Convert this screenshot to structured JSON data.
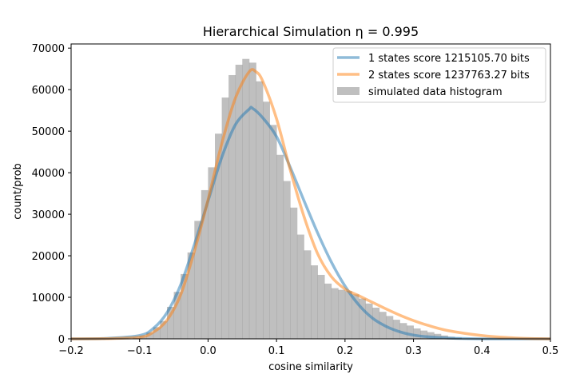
{
  "chart_data": {
    "type": "histogram",
    "title": "Hierarchical Simulation  η = 0.995",
    "xlabel": "cosine similarity",
    "ylabel": "count/prob",
    "xlim": [
      -0.2,
      0.5
    ],
    "ylim": [
      0,
      71000
    ],
    "xticks": [
      "−0.2",
      "−0.1",
      "0.0",
      "0.1",
      "0.2",
      "0.3",
      "0.4",
      "0.5"
    ],
    "yticks": [
      "0",
      "10000",
      "20000",
      "30000",
      "40000",
      "50000",
      "60000",
      "70000"
    ],
    "legend_position": "top-right",
    "colors": {
      "series_1": "#1f77b4",
      "series_2": "#ff7f0e",
      "histogram": "#808080"
    },
    "legend": [
      {
        "label": "1 states score 1215105.70 bits",
        "kind": "line",
        "color": "#1f77b4"
      },
      {
        "label": "2 states score 1237763.27 bits",
        "kind": "line",
        "color": "#ff7f0e"
      },
      {
        "label": "simulated data histogram",
        "kind": "patch",
        "color": "#808080"
      }
    ],
    "histogram": {
      "bin_width": 0.01,
      "bin_left_edges": [
        -0.11,
        -0.1,
        -0.09,
        -0.08,
        -0.07,
        -0.06,
        -0.05,
        -0.04,
        -0.03,
        -0.02,
        -0.01,
        0.0,
        0.01,
        0.02,
        0.03,
        0.04,
        0.05,
        0.06,
        0.07,
        0.08,
        0.09,
        0.1,
        0.11,
        0.12,
        0.13,
        0.14,
        0.15,
        0.16,
        0.17,
        0.18,
        0.19,
        0.2,
        0.21,
        0.22,
        0.23,
        0.24,
        0.25,
        0.26,
        0.27,
        0.28,
        0.29,
        0.3,
        0.31,
        0.32,
        0.33,
        0.34,
        0.35,
        0.36
      ],
      "counts": [
        300,
        700,
        1500,
        2800,
        4300,
        7700,
        11300,
        15600,
        20800,
        28400,
        35800,
        41300,
        49400,
        58100,
        63500,
        66000,
        67400,
        66500,
        62000,
        57100,
        51500,
        44300,
        38000,
        31600,
        25100,
        21300,
        17700,
        15400,
        13300,
        12200,
        11800,
        11500,
        10700,
        9700,
        8500,
        7500,
        6500,
        5500,
        4600,
        3800,
        3200,
        2500,
        2000,
        1600,
        1200,
        800,
        500,
        300
      ]
    },
    "series": [
      {
        "name": "1 states score 1215105.70 bits",
        "x": [
          -0.2,
          -0.15,
          -0.1,
          -0.08,
          -0.06,
          -0.04,
          -0.02,
          0.0,
          0.02,
          0.04,
          0.06,
          0.065,
          0.08,
          0.1,
          0.12,
          0.14,
          0.16,
          0.18,
          0.2,
          0.22,
          0.24,
          0.26,
          0.28,
          0.3,
          0.32,
          0.35,
          0.4,
          0.45,
          0.5
        ],
        "values": [
          0,
          100,
          800,
          2500,
          6300,
          13000,
          22700,
          33200,
          43700,
          51600,
          55300,
          55500,
          53200,
          48700,
          41300,
          33300,
          25500,
          18500,
          12700,
          8200,
          5000,
          3000,
          1700,
          900,
          500,
          200,
          0,
          0,
          0
        ]
      },
      {
        "name": "2 states score 1237763.27 bits",
        "x": [
          -0.2,
          -0.15,
          -0.1,
          -0.08,
          -0.06,
          -0.04,
          -0.02,
          0.0,
          0.02,
          0.04,
          0.06,
          0.07,
          0.08,
          0.1,
          0.12,
          0.14,
          0.16,
          0.18,
          0.2,
          0.22,
          0.24,
          0.26,
          0.28,
          0.3,
          0.32,
          0.35,
          0.4,
          0.45,
          0.5
        ],
        "values": [
          0,
          50,
          400,
          1600,
          4500,
          10600,
          21100,
          33500,
          47000,
          58000,
          64300,
          64300,
          62000,
          53000,
          40700,
          29500,
          20500,
          15000,
          12000,
          10400,
          8800,
          7200,
          5700,
          4400,
          3300,
          2000,
          800,
          200,
          0
        ]
      }
    ]
  }
}
